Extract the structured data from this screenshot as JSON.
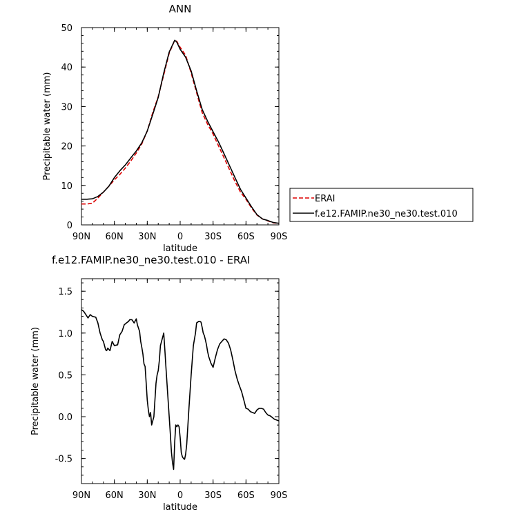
{
  "chart_data": [
    {
      "type": "line",
      "title": "ANN",
      "xlabel": "latitude",
      "ylabel": "Precipitable water (mm)",
      "xlim": [
        90,
        -90
      ],
      "ylim": [
        0,
        50
      ],
      "x_ticks": [
        {
          "value": 90,
          "label": "90N"
        },
        {
          "value": 60,
          "label": "60N"
        },
        {
          "value": 30,
          "label": "30N"
        },
        {
          "value": 0,
          "label": "0"
        },
        {
          "value": -30,
          "label": "30S"
        },
        {
          "value": -60,
          "label": "60S"
        },
        {
          "value": -90,
          "label": "90S"
        }
      ],
      "y_ticks": [
        0,
        10,
        20,
        30,
        40,
        50
      ],
      "legend_position": "right",
      "series": [
        {
          "name": "ERAI",
          "color": "#dd0000",
          "dash": true,
          "x": [
            90,
            85,
            80,
            75,
            70,
            65,
            60,
            55,
            50,
            45,
            40,
            35,
            30,
            25,
            20,
            15,
            10,
            5,
            3,
            0,
            -5,
            -10,
            -15,
            -20,
            -25,
            -30,
            -35,
            -40,
            -45,
            -50,
            -55,
            -60,
            -65,
            -70,
            -75,
            -80,
            -85,
            -90
          ],
          "values": [
            5.3,
            5.3,
            5.5,
            6.8,
            8.3,
            9.8,
            11.4,
            12.8,
            14.4,
            16.2,
            18.2,
            20.5,
            23.8,
            28.5,
            32.5,
            38.0,
            43.5,
            46.8,
            46.5,
            45.0,
            43.0,
            38.5,
            33.5,
            28.5,
            25.5,
            23.0,
            20.0,
            17.0,
            14.0,
            11.0,
            8.3,
            6.5,
            4.3,
            2.5,
            1.5,
            1.0,
            0.5,
            0.4
          ]
        },
        {
          "name": "f.e12.FAMIP.ne30_ne30.test.010",
          "color": "#000000",
          "dash": false,
          "x": [
            90,
            85,
            80,
            75,
            70,
            65,
            60,
            55,
            50,
            45,
            40,
            35,
            30,
            25,
            20,
            15,
            10,
            5,
            3,
            0,
            -5,
            -10,
            -15,
            -20,
            -25,
            -30,
            -35,
            -40,
            -45,
            -50,
            -55,
            -60,
            -65,
            -70,
            -75,
            -80,
            -85,
            -90
          ],
          "values": [
            6.5,
            6.5,
            6.6,
            7.2,
            8.3,
            9.8,
            12.0,
            13.7,
            15.2,
            17.0,
            18.7,
            20.8,
            23.8,
            28.0,
            32.3,
            38.5,
            43.8,
            46.8,
            46.3,
            44.5,
            42.5,
            39.0,
            34.0,
            29.3,
            26.3,
            23.6,
            21.0,
            18.0,
            15.0,
            12.0,
            9.0,
            6.8,
            4.6,
            2.6,
            1.5,
            1.1,
            0.6,
            0.4
          ]
        }
      ]
    },
    {
      "type": "line",
      "title": "f.e12.FAMIP.ne30_ne30.test.010 - ERAI",
      "xlabel": "latitude",
      "ylabel": "Precipitable water (mm)",
      "xlim": [
        90,
        -90
      ],
      "ylim": [
        -0.8,
        1.65
      ],
      "x_ticks": [
        {
          "value": 90,
          "label": "90N"
        },
        {
          "value": 60,
          "label": "60N"
        },
        {
          "value": 30,
          "label": "30N"
        },
        {
          "value": 0,
          "label": "0"
        },
        {
          "value": -30,
          "label": "30S"
        },
        {
          "value": -60,
          "label": "60S"
        },
        {
          "value": -90,
          "label": "90S"
        }
      ],
      "y_ticks": [
        -0.5,
        0.0,
        0.5,
        1.0,
        1.5
      ],
      "y_tick_labels": [
        "-0.5",
        "0.0",
        "0.5",
        "1.0",
        "1.5"
      ],
      "series": [
        {
          "color": "#000000",
          "x": [
            90,
            88,
            86,
            84,
            82,
            80,
            77,
            75,
            73,
            71,
            70,
            69,
            68,
            67,
            66,
            64,
            62,
            60,
            57,
            55,
            53,
            51,
            49,
            47,
            46,
            44,
            42,
            40,
            39,
            37,
            36,
            35,
            34,
            33,
            32,
            31,
            30,
            29,
            28,
            27,
            26,
            24,
            22,
            21,
            20,
            19,
            18,
            17,
            16,
            15,
            14,
            13,
            12,
            11,
            10,
            9,
            8,
            7,
            6,
            5,
            4,
            3,
            2,
            1,
            0,
            -1,
            -2,
            -3,
            -4,
            -5,
            -6,
            -8,
            -10,
            -12,
            -14,
            -15,
            -17,
            -18,
            -19,
            -20,
            -21,
            -22,
            -23,
            -24,
            -25,
            -26,
            -28,
            -30,
            -32,
            -34,
            -36,
            -38,
            -40,
            -42,
            -44,
            -46,
            -48,
            -50,
            -52,
            -54,
            -56,
            -58,
            -60,
            -62,
            -64,
            -66,
            -68,
            -70,
            -72,
            -74,
            -76,
            -78,
            -80,
            -82,
            -84,
            -86,
            -88,
            -90
          ],
          "values": [
            1.28,
            1.26,
            1.22,
            1.18,
            1.22,
            1.2,
            1.19,
            1.12,
            1.0,
            0.92,
            0.9,
            0.85,
            0.8,
            0.79,
            0.82,
            0.79,
            0.9,
            0.85,
            0.86,
            0.98,
            1.02,
            1.1,
            1.12,
            1.14,
            1.16,
            1.16,
            1.12,
            1.17,
            1.1,
            1.02,
            0.9,
            0.83,
            0.75,
            0.63,
            0.6,
            0.41,
            0.2,
            0.08,
            0.0,
            0.05,
            -0.1,
            0.0,
            0.4,
            0.5,
            0.55,
            0.67,
            0.85,
            0.9,
            0.95,
            1.0,
            0.8,
            0.6,
            0.4,
            0.2,
            0.0,
            -0.2,
            -0.42,
            -0.55,
            -0.63,
            -0.3,
            -0.1,
            -0.12,
            -0.1,
            -0.12,
            -0.25,
            -0.43,
            -0.48,
            -0.5,
            -0.51,
            -0.45,
            -0.33,
            0.1,
            0.5,
            0.85,
            1.0,
            1.12,
            1.14,
            1.14,
            1.13,
            1.07,
            1.0,
            0.97,
            0.92,
            0.86,
            0.78,
            0.72,
            0.64,
            0.59,
            0.7,
            0.8,
            0.87,
            0.9,
            0.93,
            0.92,
            0.88,
            0.8,
            0.68,
            0.55,
            0.45,
            0.37,
            0.3,
            0.2,
            0.1,
            0.09,
            0.06,
            0.05,
            0.04,
            0.08,
            0.1,
            0.1,
            0.09,
            0.05,
            0.02,
            0.01,
            -0.01,
            -0.03,
            -0.04,
            -0.05
          ]
        }
      ]
    }
  ]
}
